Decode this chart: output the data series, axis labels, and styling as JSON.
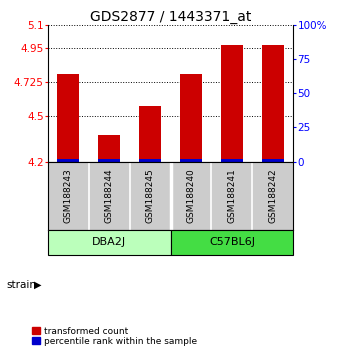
{
  "title": "GDS2877 / 1443371_at",
  "samples": [
    "GSM188243",
    "GSM188244",
    "GSM188245",
    "GSM188240",
    "GSM188241",
    "GSM188242"
  ],
  "group_labels": [
    "DBA2J",
    "C57BL6J"
  ],
  "group_split": 3,
  "red_values": [
    4.775,
    4.375,
    4.565,
    4.775,
    4.965,
    4.965
  ],
  "blue_percentiles": [
    2.0,
    2.0,
    2.0,
    2.0,
    2.0,
    2.0
  ],
  "base": 4.2,
  "ylim_left": [
    4.2,
    5.1
  ],
  "yticks_left": [
    4.2,
    4.5,
    4.725,
    4.95,
    5.1
  ],
  "ytick_labels_left": [
    "4.2",
    "4.5",
    "4.725",
    "4.95",
    "5.1"
  ],
  "ylim_right": [
    0,
    100
  ],
  "yticks_right": [
    0,
    25,
    50,
    75,
    100
  ],
  "ytick_labels_right": [
    "0",
    "25",
    "50",
    "75",
    "100%"
  ],
  "bar_width": 0.55,
  "red_color": "#cc0000",
  "blue_color": "#0000cc",
  "group1_color": "#bbffbb",
  "group2_color": "#44dd44",
  "sample_bg_color": "#cccccc",
  "strain_label": "strain",
  "legend_red": "transformed count",
  "legend_blue": "percentile rank within the sample",
  "title_fontsize": 10,
  "tick_fontsize": 7.5,
  "sample_fontsize": 6.5,
  "group_fontsize": 8,
  "legend_fontsize": 6.5
}
